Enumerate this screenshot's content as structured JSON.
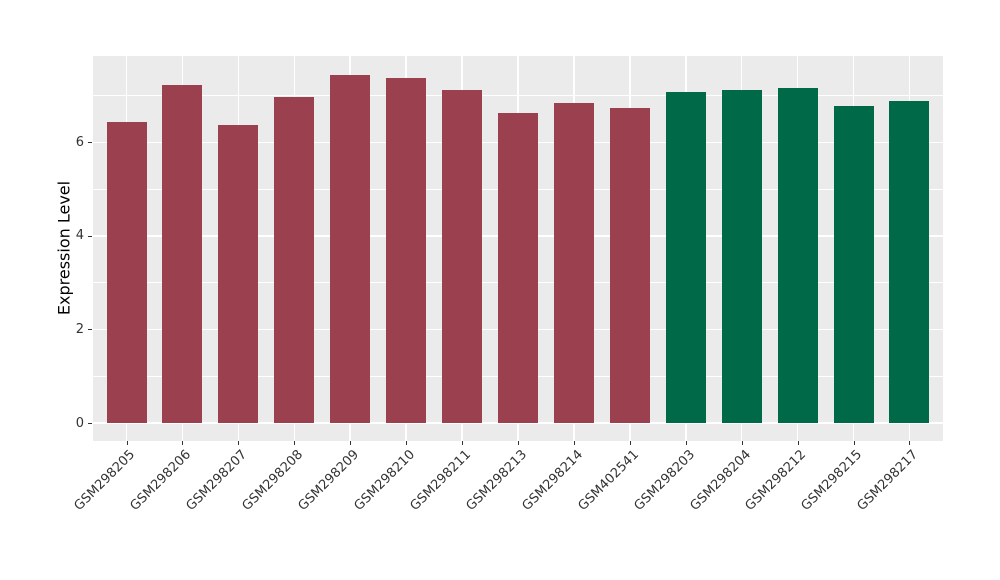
{
  "figure": {
    "background": "#ffffff"
  },
  "chart_data": {
    "type": "bar",
    "title": "",
    "xlabel": "",
    "ylabel": "Expression Level",
    "categories": [
      "GSM298205",
      "GSM298206",
      "GSM298207",
      "GSM298208",
      "GSM298209",
      "GSM298210",
      "GSM298211",
      "GSM298213",
      "GSM298214",
      "GSM402541",
      "GSM298203",
      "GSM298204",
      "GSM298212",
      "GSM298215",
      "GSM298217"
    ],
    "values": [
      6.43,
      7.22,
      6.37,
      6.97,
      7.45,
      7.39,
      7.13,
      6.63,
      6.84,
      6.74,
      7.08,
      7.13,
      7.16,
      6.78,
      6.88
    ],
    "colors": [
      "#9A404E",
      "#9A404E",
      "#9A404E",
      "#9A404E",
      "#9A404E",
      "#9A404E",
      "#9A404E",
      "#9A404E",
      "#9A404E",
      "#9A404E",
      "#006A48",
      "#006A48",
      "#006A48",
      "#006A48",
      "#006A48"
    ],
    "group_colors": {
      "group1": "#9A404E",
      "group2": "#006A48"
    },
    "yticks": [
      0,
      2,
      4,
      6
    ],
    "y_minor_ticks": [
      1,
      3,
      5,
      7
    ],
    "ylim": [
      0,
      7.85
    ],
    "grid": "on",
    "legend_position": "none",
    "panel_background": "#EBEBEB",
    "grid_color": "#FFFFFF",
    "axis_text_color": "#333333"
  }
}
